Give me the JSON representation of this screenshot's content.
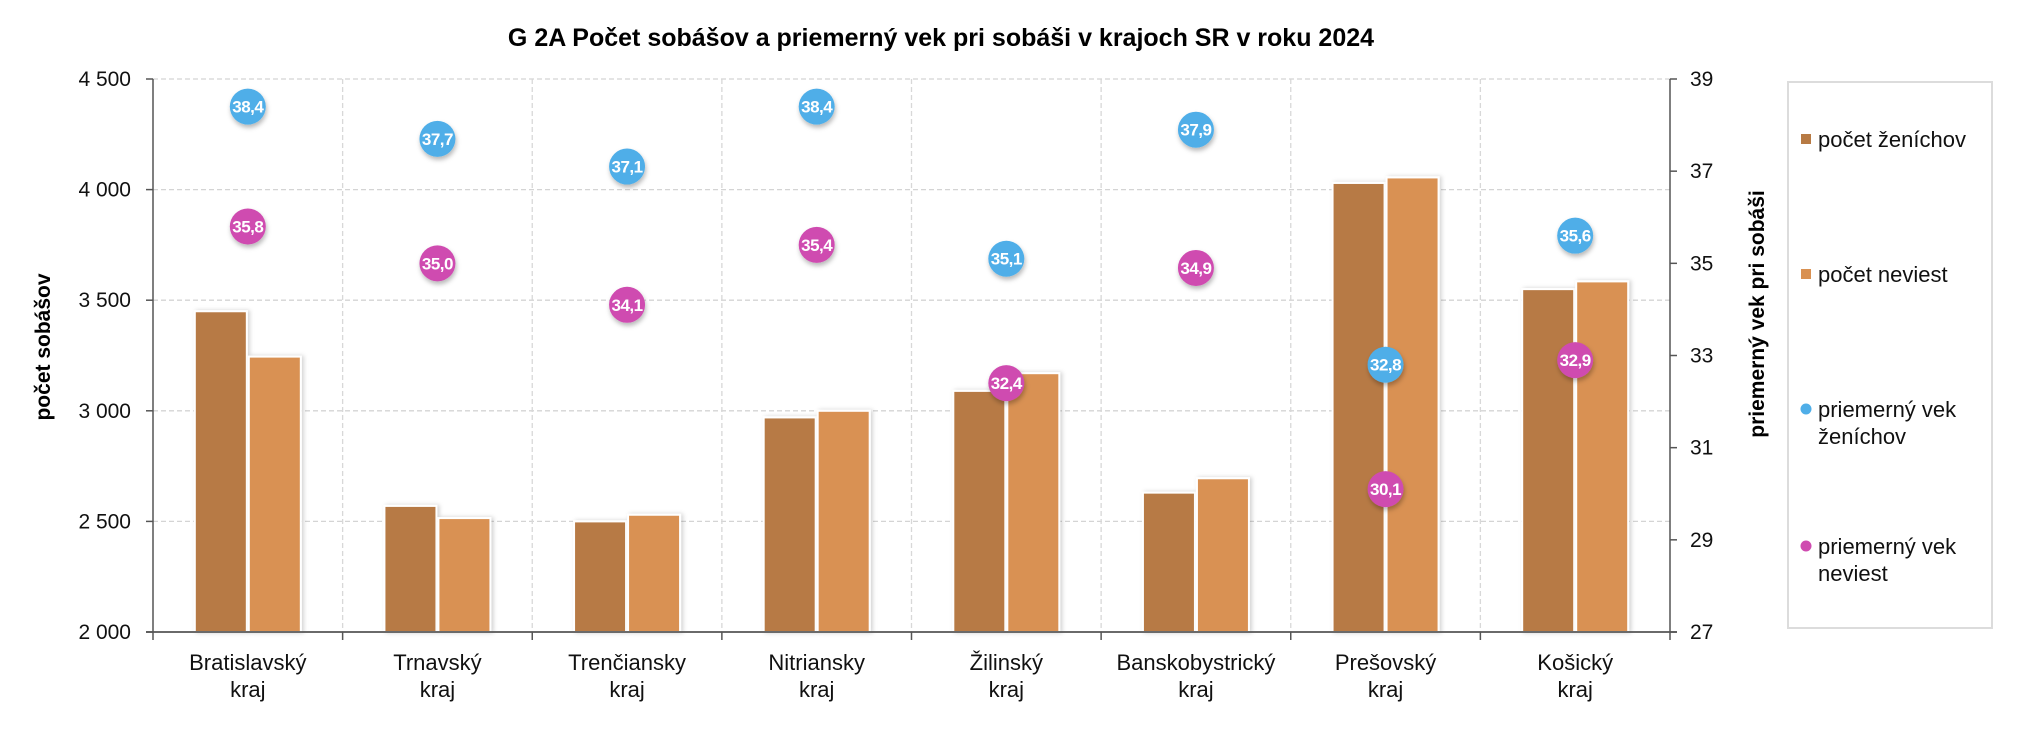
{
  "chart_data": {
    "type": "bar",
    "title": "G 2A Počet sobášov a priemerný vek pri sobáši v krajoch SR v roku 2024",
    "categories": [
      [
        "Bratislavský",
        "kraj"
      ],
      [
        "Trnavský",
        "kraj"
      ],
      [
        "Trenčiansky",
        "kraj"
      ],
      [
        "Nitriansky",
        "kraj"
      ],
      [
        "Žilinský",
        "kraj"
      ],
      [
        "Banskobystrický",
        "kraj"
      ],
      [
        "Prešovský",
        "kraj"
      ],
      [
        "Košický",
        "kraj"
      ]
    ],
    "ylabel": "počet sobášov",
    "y2label": "priemerný vek pri sobáši",
    "ylim": [
      2000,
      4500
    ],
    "y2lim": [
      27,
      39
    ],
    "yticks": [
      "2 000",
      "2 500",
      "3 000",
      "3 500",
      "4 000",
      "4 500"
    ],
    "yticks_values": [
      2000,
      2500,
      3000,
      3500,
      4000,
      4500
    ],
    "y2ticks": [
      "27",
      "29",
      "31",
      "33",
      "35",
      "37",
      "39"
    ],
    "y2ticks_values": [
      27,
      29,
      31,
      33,
      35,
      37,
      39
    ],
    "grid": true,
    "legend_position": "right",
    "bar_series": [
      {
        "name": "počet ženíchov",
        "color": "#B77A44",
        "values": [
          3450,
          2570,
          2500,
          2970,
          3090,
          2630,
          4030,
          3550
        ]
      },
      {
        "name": "počet neviest",
        "color": "#D99152",
        "values": [
          3245,
          2515,
          2530,
          3000,
          3170,
          2695,
          4055,
          3585
        ]
      }
    ],
    "point_series": [
      {
        "name": "priemerný vek\nženíchov",
        "legend_lines": [
          "priemerný vek",
          "ženíchov"
        ],
        "color": "#4FAEE8",
        "axis": "right",
        "values": [
          38.4,
          37.7,
          37.1,
          38.4,
          35.1,
          37.9,
          32.8,
          35.6
        ],
        "labels": [
          "38,4",
          "37,7",
          "37,1",
          "38,4",
          "35,1",
          "37,9",
          "32,8",
          "35,6"
        ]
      },
      {
        "name": "priemerný vek\nneviest",
        "legend_lines": [
          "priemerný vek",
          "neviest"
        ],
        "color": "#CF4BB0",
        "axis": "right",
        "values": [
          35.8,
          35.0,
          34.1,
          35.4,
          32.4,
          34.9,
          30.1,
          32.9
        ],
        "labels": [
          "35,8",
          "35,0",
          "34,1",
          "35,4",
          "32,4",
          "34,9",
          "30,1",
          "32,9"
        ]
      }
    ]
  }
}
